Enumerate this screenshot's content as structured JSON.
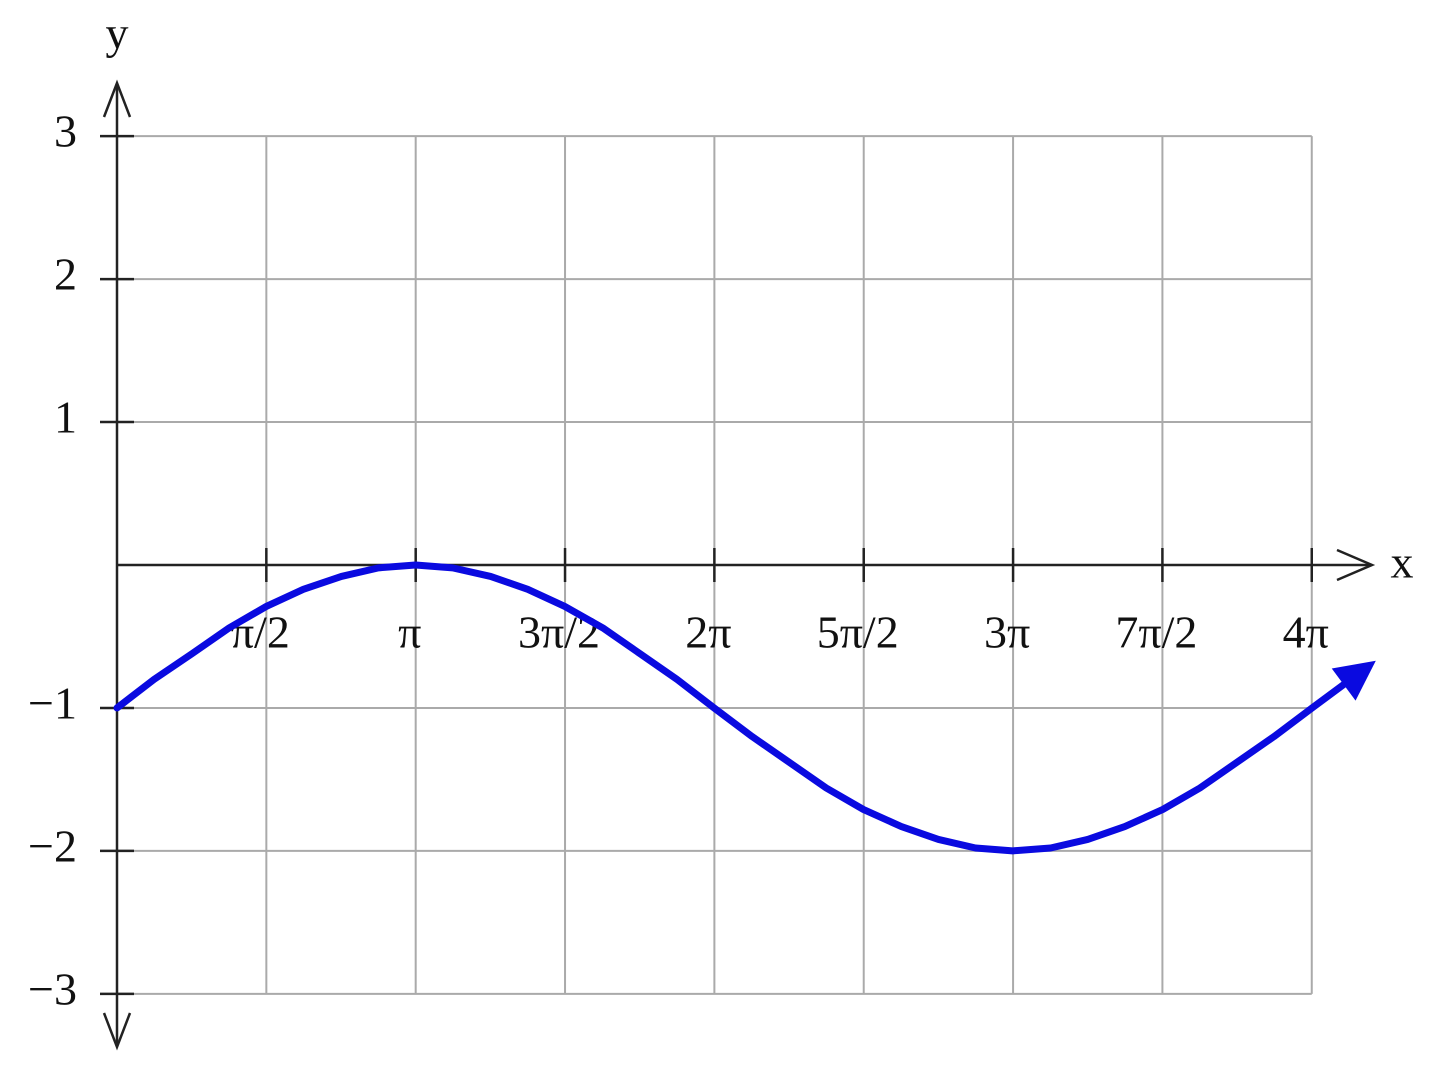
{
  "chart_data": {
    "type": "line",
    "x_label": "x",
    "y_label": "y",
    "x": [
      0,
      0.39,
      0.79,
      1.18,
      1.57,
      1.96,
      2.36,
      2.75,
      3.14,
      3.53,
      3.93,
      4.32,
      4.71,
      5.11,
      5.5,
      5.89,
      6.28,
      6.68,
      7.07,
      7.46,
      7.85,
      8.25,
      8.64,
      9.03,
      9.42,
      9.82,
      10.21,
      10.6,
      11.0,
      11.39,
      11.78,
      12.17,
      12.57,
      13.24
    ],
    "values": [
      -1,
      -0.8,
      -0.62,
      -0.44,
      -0.29,
      -0.17,
      -0.08,
      -0.02,
      0,
      -0.02,
      -0.08,
      -0.17,
      -0.29,
      -0.44,
      -0.62,
      -0.8,
      -1,
      -1.2,
      -1.38,
      -1.56,
      -1.71,
      -1.83,
      -1.92,
      -1.98,
      -2,
      -1.98,
      -1.92,
      -1.83,
      -1.71,
      -1.56,
      -1.38,
      -1.2,
      -1,
      -0.67
    ],
    "color": "#0a0ae0",
    "xlim": [
      0,
      13.2
    ],
    "ylim": [
      -3.4,
      3.4
    ],
    "xticks": [
      {
        "value": 1.5708,
        "label": "π/2"
      },
      {
        "value": 3.1416,
        "label": "π"
      },
      {
        "value": 4.7124,
        "label": "3π/2"
      },
      {
        "value": 6.2832,
        "label": "2π"
      },
      {
        "value": 7.854,
        "label": "5π/2"
      },
      {
        "value": 9.4248,
        "label": "3π"
      },
      {
        "value": 10.9956,
        "label": "7π/2"
      },
      {
        "value": 12.5664,
        "label": "4π"
      }
    ],
    "yticks": [
      3,
      2,
      1,
      {
        "value": -1,
        "label": "−1"
      },
      {
        "value": -2,
        "label": "−2"
      },
      {
        "value": -3,
        "label": "−3"
      }
    ],
    "grid": true
  }
}
